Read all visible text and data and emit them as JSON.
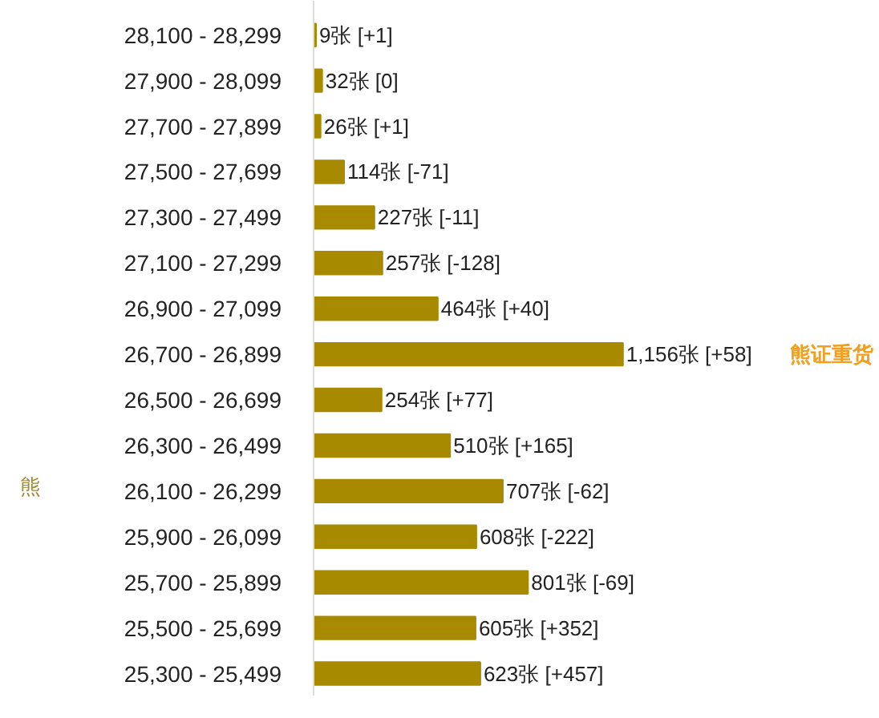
{
  "chart_data": {
    "type": "bar",
    "orientation": "horizontal",
    "categories": [
      "28,100 - 28,299",
      "27,900 - 28,099",
      "27,700 - 27,899",
      "27,500 - 27,699",
      "27,300 - 27,499",
      "27,100 - 27,299",
      "26,900 - 27,099",
      "26,700 - 26,899",
      "26,500 - 26,699",
      "26,300 - 26,499",
      "26,100 - 26,299",
      "25,900 - 26,099",
      "25,700 - 25,899",
      "25,500 - 25,699",
      "25,300 - 25,499"
    ],
    "values": [
      9,
      32,
      26,
      114,
      227,
      257,
      464,
      1156,
      254,
      510,
      707,
      608,
      801,
      605,
      623
    ],
    "value_labels": [
      "9张 [+1]",
      "32张 [0]",
      "26张 [+1]",
      "114张 [-71]",
      "227张 [-11]",
      "257张 [-128]",
      "464张 [+40]",
      "1,156张 [+58]",
      "254张 [+77]",
      "510张 [+165]",
      "707张 [-62]",
      "608张 [-222]",
      "801张 [-69]",
      "605张 [+352]",
      "623张 [+457]"
    ],
    "color": "#a88a00",
    "annotations": [
      "熊证重货",
      "熊"
    ],
    "grid": false
  }
}
